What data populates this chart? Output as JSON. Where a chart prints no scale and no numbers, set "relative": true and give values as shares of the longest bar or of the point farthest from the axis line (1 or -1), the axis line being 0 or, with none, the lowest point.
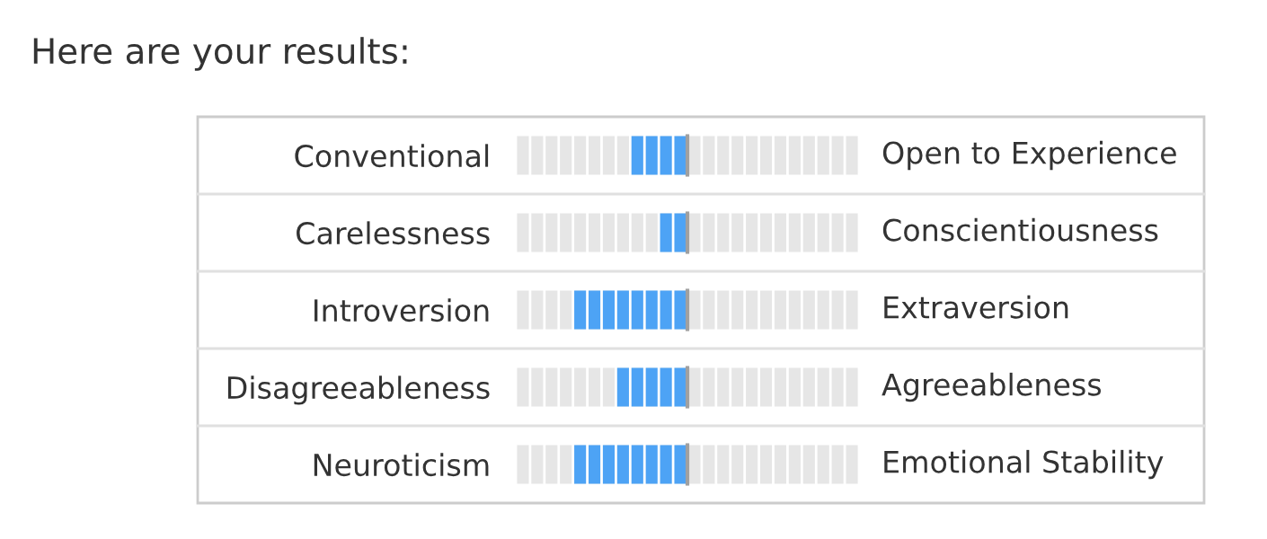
{
  "chart_data": {
    "type": "bar",
    "orientation": "horizontal",
    "relative": true,
    "title": "Here are your results:",
    "categories": [
      "Conventional",
      "Carelessness",
      "Introversion",
      "Disagreeableness",
      "Neuroticism"
    ],
    "values": [
      -0.5,
      -0.25,
      -1,
      -0.625,
      -1
    ],
    "color": "#4da3f5",
    "annotations": [
      "Open to Experience",
      "Conscientiousness",
      "Extraversion",
      "Agreeableness",
      "Emotional Stability"
    ],
    "ref_lines": [
      {
        "axis": "x",
        "value": 0,
        "color": "#a0a0a0"
      }
    ],
    "grid": "x",
    "tick_labels": "y"
  }
}
